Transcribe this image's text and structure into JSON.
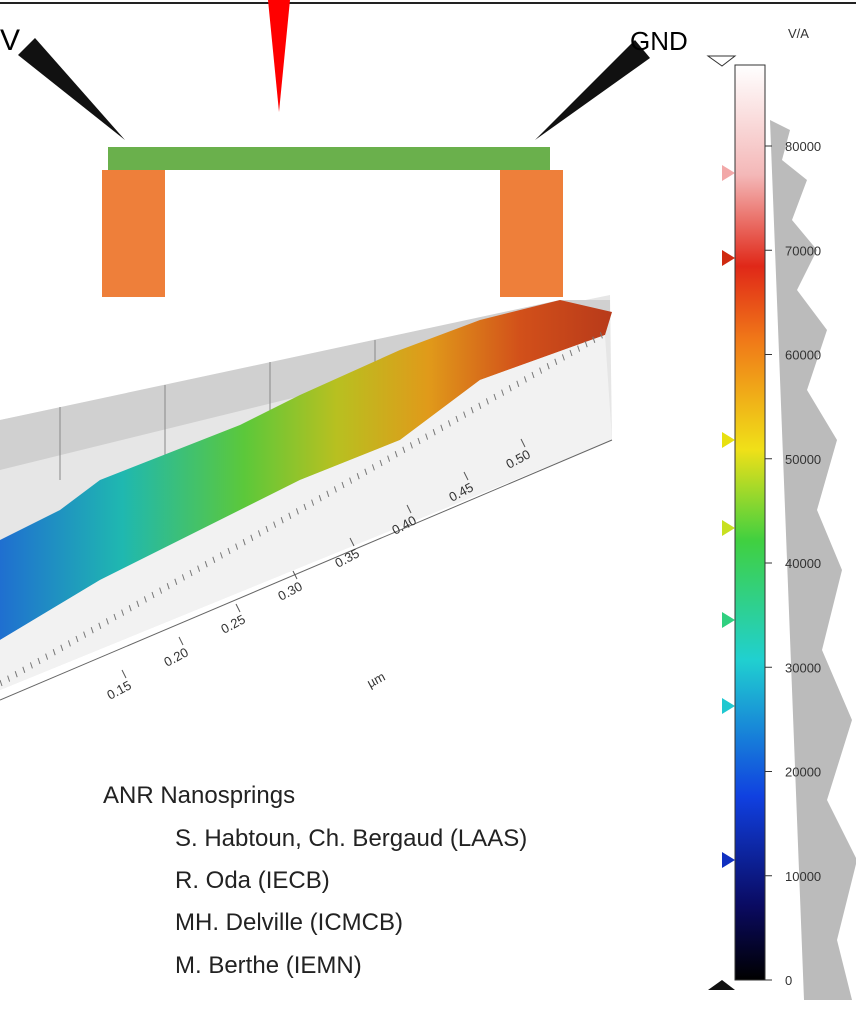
{
  "labels": {
    "left_probe": "V",
    "right_probe": "GND"
  },
  "colorbar": {
    "unit": "V/A",
    "ticks": [
      0,
      10000,
      20000,
      30000,
      40000,
      50000,
      60000,
      70000,
      80000
    ]
  },
  "surface_axis": {
    "ticks": [
      0.15,
      0.2,
      0.25,
      0.3,
      0.35,
      0.4,
      0.45,
      0.5
    ],
    "tick_labels": [
      "0.15",
      "0.20",
      "0.25",
      "0.30",
      "0.35",
      "0.40",
      "0.45",
      "0.50"
    ],
    "unit": "µm"
  },
  "credits": {
    "title": "ANR Nanosprings",
    "lines": [
      "S. Habtoun, Ch. Bergaud (LAAS)",
      "R. Oda (IECB)",
      "MH. Delville (ICMCB)",
      "M. Berthe (IEMN)"
    ]
  }
}
